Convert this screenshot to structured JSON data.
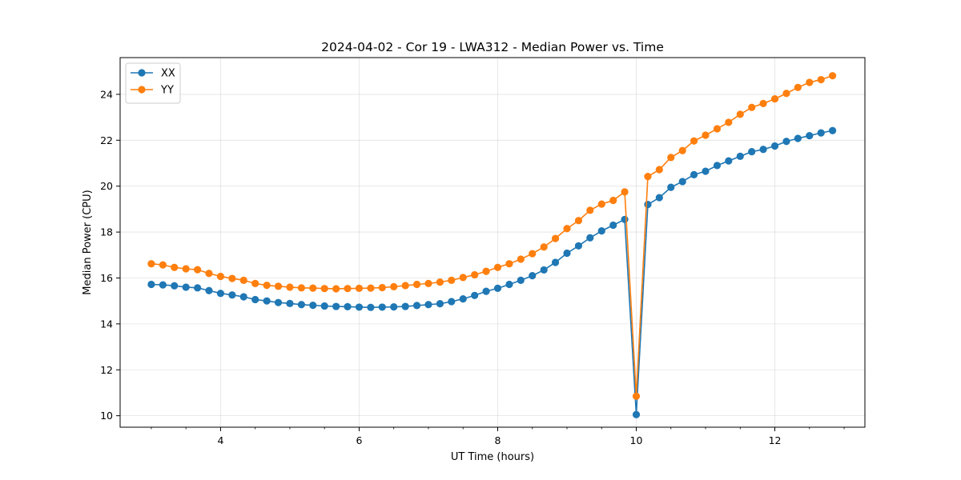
{
  "chart_data": {
    "type": "line",
    "title": "2024-04-02 - Cor 19 - LWA312 - Median Power vs. Time",
    "xlabel": "UT Time (hours)",
    "ylabel": "Median Power (CPU)",
    "xlim": [
      2.55,
      13.3
    ],
    "ylim": [
      9.5,
      25.6
    ],
    "xticks": [
      4,
      6,
      8,
      10,
      12
    ],
    "yticks": [
      10,
      12,
      14,
      16,
      18,
      20,
      22,
      24
    ],
    "xtick_labels": [
      "4",
      "6",
      "8",
      "10",
      "12"
    ],
    "ytick_labels": [
      "10",
      "12",
      "14",
      "16",
      "18",
      "20",
      "22",
      "24"
    ],
    "grid": true,
    "legend_position": "top-left",
    "x": [
      3.0,
      3.167,
      3.333,
      3.5,
      3.667,
      3.833,
      4.0,
      4.167,
      4.333,
      4.5,
      4.667,
      4.833,
      5.0,
      5.167,
      5.333,
      5.5,
      5.667,
      5.833,
      6.0,
      6.167,
      6.333,
      6.5,
      6.667,
      6.833,
      7.0,
      7.167,
      7.333,
      7.5,
      7.667,
      7.833,
      8.0,
      8.167,
      8.333,
      8.5,
      8.667,
      8.833,
      9.0,
      9.167,
      9.333,
      9.5,
      9.667,
      9.833,
      10.0,
      10.167,
      10.333,
      10.5,
      10.667,
      10.833,
      11.0,
      11.167,
      11.333,
      11.5,
      11.667,
      11.833,
      12.0,
      12.167,
      12.333,
      12.5,
      12.667,
      12.833
    ],
    "series": [
      {
        "name": "XX",
        "color": "#1f77b4",
        "values": [
          15.72,
          15.7,
          15.66,
          15.6,
          15.57,
          15.45,
          15.33,
          15.26,
          15.18,
          15.06,
          15.0,
          14.93,
          14.89,
          14.84,
          14.81,
          14.78,
          14.76,
          14.75,
          14.73,
          14.72,
          14.73,
          14.74,
          14.76,
          14.8,
          14.84,
          14.88,
          14.97,
          15.09,
          15.24,
          15.42,
          15.55,
          15.72,
          15.9,
          16.1,
          16.35,
          16.68,
          17.08,
          17.4,
          17.75,
          18.05,
          18.3,
          18.55,
          10.05,
          19.2,
          19.5,
          19.95,
          20.2,
          20.5,
          20.65,
          20.9,
          21.1,
          21.3,
          21.5,
          21.6,
          21.75,
          21.95,
          22.08,
          22.2,
          22.32,
          22.42
        ]
      },
      {
        "name": "YY",
        "color": "#ff7f0e",
        "values": [
          16.62,
          16.57,
          16.46,
          16.4,
          16.36,
          16.2,
          16.07,
          15.98,
          15.9,
          15.76,
          15.68,
          15.64,
          15.6,
          15.57,
          15.56,
          15.54,
          15.53,
          15.54,
          15.55,
          15.56,
          15.58,
          15.62,
          15.67,
          15.72,
          15.76,
          15.82,
          15.9,
          16.02,
          16.14,
          16.29,
          16.46,
          16.62,
          16.82,
          17.06,
          17.35,
          17.72,
          18.15,
          18.5,
          18.95,
          19.22,
          19.38,
          19.75,
          10.85,
          20.42,
          20.72,
          21.25,
          21.55,
          21.97,
          22.22,
          22.5,
          22.78,
          23.13,
          23.43,
          23.6,
          23.8,
          24.04,
          24.3,
          24.52,
          24.64,
          24.81
        ]
      }
    ]
  }
}
